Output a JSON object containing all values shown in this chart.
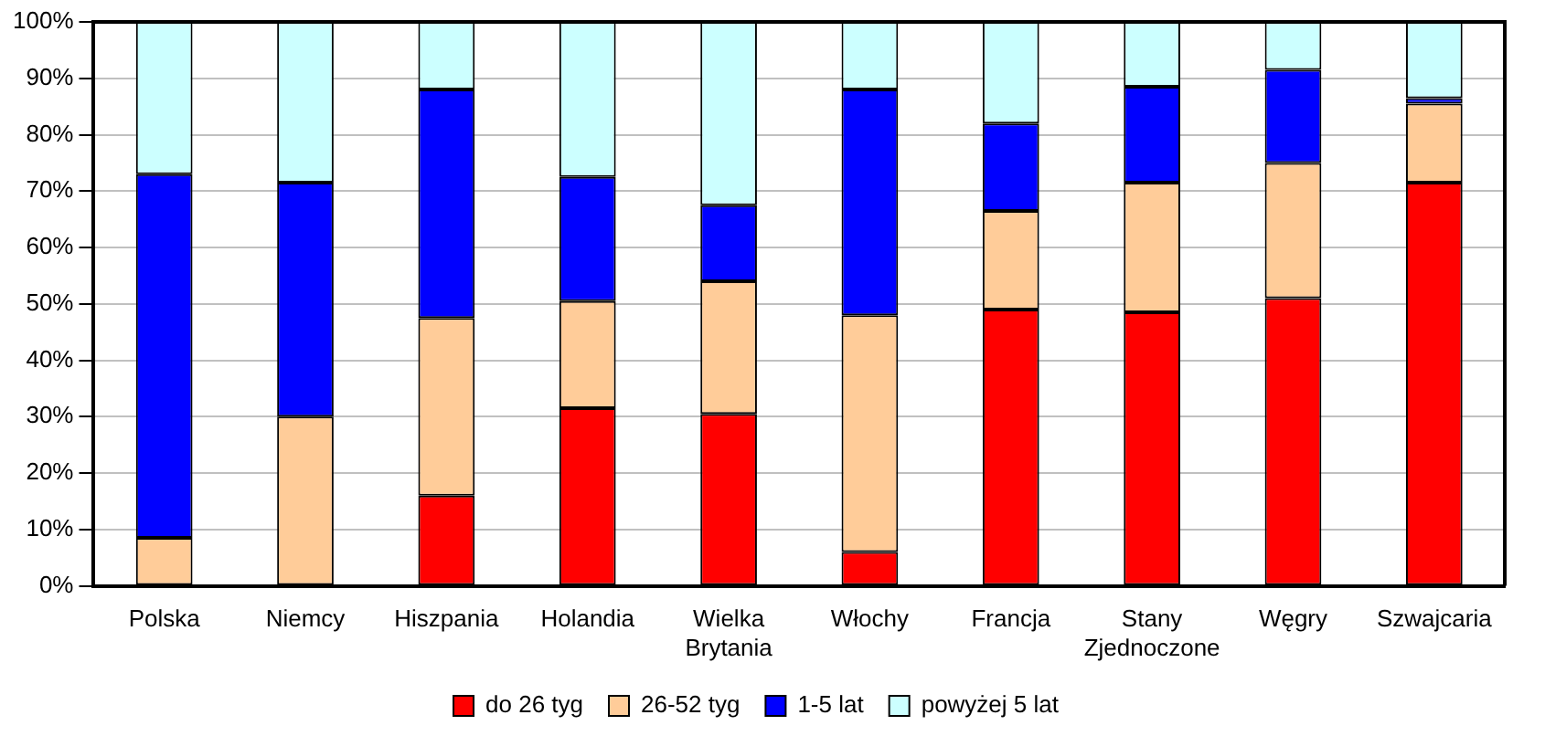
{
  "chart_data": {
    "type": "bar",
    "stacked": true,
    "categories": [
      "Polska",
      "Niemcy",
      "Hiszpania",
      "Holandia",
      "Wielka Brytania",
      "Włochy",
      "Francja",
      "Stany Zjednoczone",
      "Węgry",
      "Szwajcaria"
    ],
    "series": [
      {
        "name": "do 26 tyg",
        "color": "#ff0000",
        "values": [
          0,
          0,
          16,
          31.5,
          30.5,
          6,
          49,
          48.5,
          51,
          71.5
        ]
      },
      {
        "name": "26-52 tyg",
        "color": "#ffcc99",
        "values": [
          8.5,
          30,
          31.5,
          19,
          23.5,
          42,
          17.5,
          23,
          24,
          14
        ]
      },
      {
        "name": "1-5 lat",
        "color": "#0000ff",
        "values": [
          64.5,
          41.5,
          40.5,
          22,
          13.5,
          40,
          15.5,
          17,
          16.5,
          1
        ]
      },
      {
        "name": "powyżej 5 lat",
        "color": "#ccffff",
        "values": [
          27,
          28.5,
          12,
          27.5,
          32.5,
          12,
          18,
          11.5,
          8.5,
          13.5
        ]
      }
    ],
    "ylim": [
      0,
      100
    ],
    "yticks": [
      {
        "value": 0,
        "label": "0%"
      },
      {
        "value": 10,
        "label": "10%"
      },
      {
        "value": 20,
        "label": "20%"
      },
      {
        "value": 30,
        "label": "30%"
      },
      {
        "value": 40,
        "label": "40%"
      },
      {
        "value": 50,
        "label": "50%"
      },
      {
        "value": 60,
        "label": "60%"
      },
      {
        "value": 70,
        "label": "70%"
      },
      {
        "value": 80,
        "label": "80%"
      },
      {
        "value": 90,
        "label": "90%"
      },
      {
        "value": 100,
        "label": "100%"
      }
    ],
    "grid": "y",
    "legend": "bottom"
  }
}
